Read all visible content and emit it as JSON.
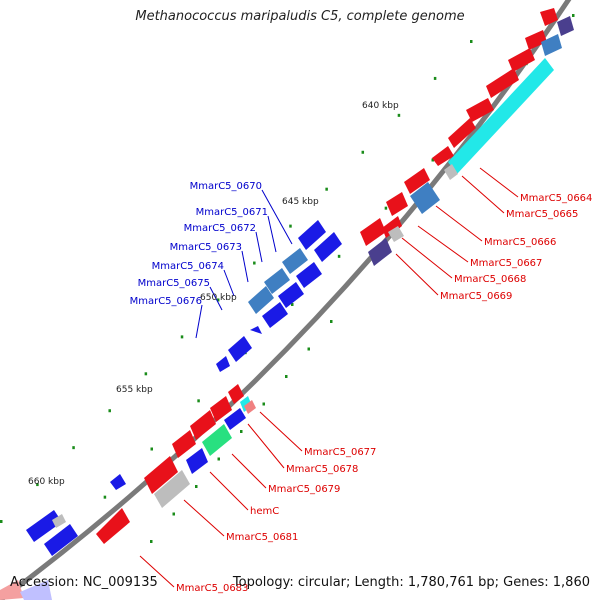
{
  "title": "Methanococcus maripaludis C5, complete genome",
  "footer": {
    "accession": "Accession: NC_009135",
    "summary": "Topology: circular; Length: 1,780,761 bp; Genes: 1,860"
  },
  "colors": {
    "background": "#ffffff",
    "backbone": "#7a7a7a",
    "cds_forward": "#e8111a",
    "cds_reverse": "#1a1ae6",
    "trna": "#22e8e8",
    "rrna_blue": "#3f7fc2",
    "purple": "#4a3f8e",
    "green": "#28e080",
    "grey": "#bdbdbd",
    "tick_green": "#1a8c1a",
    "label_red": "#dd0000",
    "label_blue": "#0000cc"
  },
  "scale_labels": [
    "640 kbp",
    "645 kbp",
    "650 kbp",
    "655 kbp",
    "660 kbp"
  ],
  "gene_labels": {
    "right": [
      "MmarC5_0664",
      "MmarC5_0665",
      "MmarC5_0666",
      "MmarC5_0667",
      "MmarC5_0668",
      "MmarC5_0669",
      "MmarC5_0677",
      "MmarC5_0678",
      "MmarC5_0679",
      "hemC",
      "MmarC5_0681",
      "MmarC5_0683"
    ],
    "left": [
      "MmarC5_0670",
      "MmarC5_0671",
      "MmarC5_0672",
      "MmarC5_0673",
      "MmarC5_0674",
      "MmarC5_0675",
      "MmarC5_0676"
    ]
  }
}
